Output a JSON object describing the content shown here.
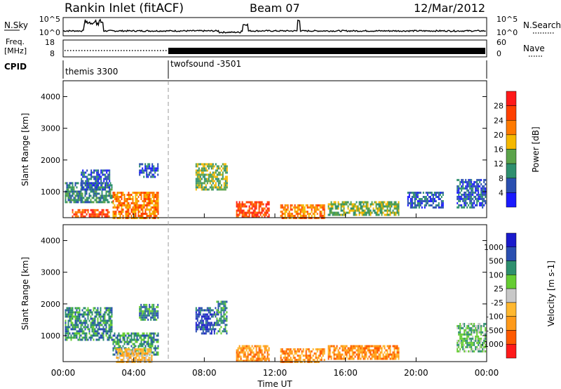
{
  "header": {
    "station": "Rankin Inlet (fitACF)",
    "beam": "Beam 07",
    "date": "12/Mar/2012"
  },
  "left_labels": {
    "nsky": "N.Sky",
    "freq": "Freq.",
    "freq_unit": "[MHz]",
    "cpid": "CPID",
    "nsky_top": "10^5",
    "nsky_bottom": "10^0",
    "freq_top": "18",
    "freq_bottom": "8"
  },
  "right_labels": {
    "nsearch": "N.Search",
    "nave": "Nave",
    "nsearch_top": "10^5",
    "nsearch_bottom": "10^0",
    "nave_top": "60",
    "nave_bottom": "0"
  },
  "cpid_segments": [
    {
      "label": "themis 3300",
      "start_hour": 0
    },
    {
      "label": "twofsound -3501",
      "start_hour": 6
    }
  ],
  "x_axis": {
    "label": "Time UT",
    "ticks": [
      "00:00",
      "04:00",
      "08:00",
      "12:00",
      "16:00",
      "20:00",
      "00:00"
    ]
  },
  "colors": {
    "power": [
      "#1a1aff",
      "#2a4fb0",
      "#2e8f6e",
      "#5ba34a",
      "#f5b800",
      "#ff7a00",
      "#ff4000",
      "#ff1a1a"
    ],
    "velocity": [
      "#ff1a1a",
      "#ff5a00",
      "#ff9a1a",
      "#ffb830",
      "#c8c8c8",
      "#66cc33",
      "#2e8f6e",
      "#2a4fb0",
      "#1a1acc"
    ]
  },
  "chart_data": [
    {
      "type": "heatmap",
      "name": "power",
      "ylabel": "Slant Range [km]",
      "xlabel": "Time UT",
      "ylim": [
        180,
        4500
      ],
      "xlim": [
        0,
        24
      ],
      "yticks": [
        "1000",
        "2000",
        "3000",
        "4000"
      ],
      "colorbar_label": "Power [dB]",
      "colorbar_ticks": [
        "4",
        "8",
        "12",
        "16",
        "20",
        "24",
        "28"
      ],
      "patches": [
        {
          "t0": 0.1,
          "t1": 2.8,
          "r0": 700,
          "r1": 1300,
          "level": 2
        },
        {
          "t0": 1.0,
          "t1": 2.6,
          "r0": 1100,
          "r1": 1700,
          "level": 1
        },
        {
          "t0": 2.8,
          "t1": 5.4,
          "r0": 200,
          "r1": 1000,
          "level": 5
        },
        {
          "t0": 4.3,
          "t1": 5.4,
          "r0": 1500,
          "r1": 1900,
          "level": 1
        },
        {
          "t0": 0.5,
          "t1": 2.6,
          "r0": 200,
          "r1": 450,
          "level": 6
        },
        {
          "t0": 7.5,
          "t1": 9.3,
          "r0": 1100,
          "r1": 1900,
          "level": 3
        },
        {
          "t0": 9.8,
          "t1": 11.7,
          "r0": 200,
          "r1": 700,
          "level": 6
        },
        {
          "t0": 12.3,
          "t1": 14.8,
          "r0": 200,
          "r1": 600,
          "level": 5
        },
        {
          "t0": 15.0,
          "t1": 19.0,
          "r0": 300,
          "r1": 700,
          "level": 3
        },
        {
          "t0": 19.5,
          "t1": 21.5,
          "r0": 500,
          "r1": 1000,
          "level": 1
        },
        {
          "t0": 22.3,
          "t1": 23.9,
          "r0": 500,
          "r1": 1400,
          "level": 1
        }
      ]
    },
    {
      "type": "heatmap",
      "name": "velocity",
      "ylabel": "Slant Range [km]",
      "xlabel": "Time UT",
      "ylim": [
        180,
        4500
      ],
      "xlim": [
        0,
        24
      ],
      "yticks": [
        "1000",
        "2000",
        "3000",
        "4000"
      ],
      "colorbar_label": "Velocity [m s-1]",
      "colorbar_ticks": [
        "1000",
        "500",
        "100",
        "25",
        "-25",
        "-100",
        "-500",
        "-1000"
      ],
      "patches": [
        {
          "t0": 0.1,
          "t1": 2.8,
          "r0": 900,
          "r1": 1900,
          "level": 6
        },
        {
          "t0": 2.8,
          "t1": 5.4,
          "r0": 400,
          "r1": 1100,
          "level": 6
        },
        {
          "t0": 4.3,
          "t1": 5.4,
          "r0": 1500,
          "r1": 2000,
          "level": 6
        },
        {
          "t0": 3.0,
          "t1": 5.0,
          "r0": 200,
          "r1": 600,
          "level": 3
        },
        {
          "t0": 7.5,
          "t1": 8.6,
          "r0": 1100,
          "r1": 1900,
          "level": 7
        },
        {
          "t0": 8.6,
          "t1": 9.3,
          "r0": 1100,
          "r1": 2100,
          "level": 6
        },
        {
          "t0": 9.8,
          "t1": 11.7,
          "r0": 200,
          "r1": 700,
          "level": 2
        },
        {
          "t0": 12.3,
          "t1": 14.8,
          "r0": 200,
          "r1": 600,
          "level": 2
        },
        {
          "t0": 15.0,
          "t1": 19.0,
          "r0": 300,
          "r1": 700,
          "level": 2
        },
        {
          "t0": 22.3,
          "t1": 23.9,
          "r0": 500,
          "r1": 1400,
          "level": 5
        }
      ]
    }
  ]
}
